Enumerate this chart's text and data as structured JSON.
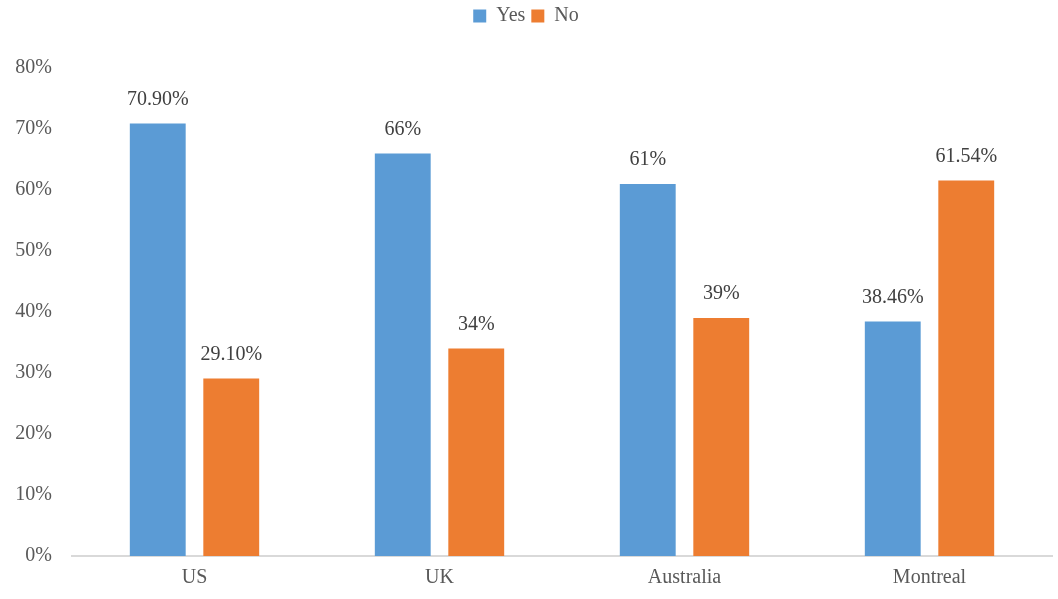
{
  "chart_data": {
    "type": "bar",
    "categories": [
      "US",
      "UK",
      "Australia",
      "Montreal"
    ],
    "series": [
      {
        "name": "Yes",
        "color": "#5b9bd5",
        "values": [
          70.9,
          66,
          61,
          38.46
        ],
        "value_labels": [
          "70.90%",
          "66%",
          "61%",
          "38.46%"
        ]
      },
      {
        "name": "No",
        "color": "#ed7d31",
        "values": [
          29.1,
          34,
          39,
          61.54
        ],
        "value_labels": [
          "29.10%",
          "34%",
          "39%",
          "61.54%"
        ]
      }
    ],
    "ylim": [
      0,
      80
    ],
    "yticks": [
      {
        "value": 0,
        "label": "0%"
      },
      {
        "value": 10,
        "label": "10%"
      },
      {
        "value": 20,
        "label": "20%"
      },
      {
        "value": 30,
        "label": "30%"
      },
      {
        "value": 40,
        "label": "40%"
      },
      {
        "value": 50,
        "label": "50%"
      },
      {
        "value": 60,
        "label": "60%"
      },
      {
        "value": 70,
        "label": "70%"
      },
      {
        "value": 80,
        "label": "80%"
      }
    ],
    "grid": false,
    "legend": "top"
  }
}
